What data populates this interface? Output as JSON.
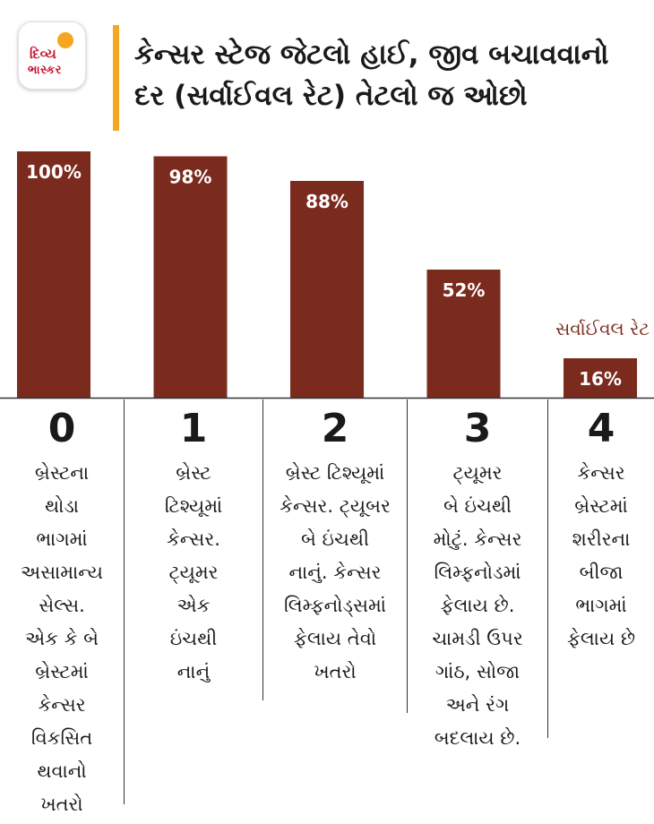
{
  "logo": {
    "line1": "દિવ્ય",
    "line2": "ભાસ્કર"
  },
  "title": "કેન્સર સ્ટેજ જેટલો હાઈ, જીવ બચાવવાનો\nદર (સર્વાઈવલ રેટ) તેટલો જ ઓછો",
  "colors": {
    "bar": "#7b2b1e",
    "accent": "#f5a623",
    "bar_label": "#ffffff"
  },
  "chart_data": {
    "type": "bar",
    "categories": [
      "0",
      "1",
      "2",
      "3",
      "4"
    ],
    "series": [
      {
        "name": "સર્વાઈવલ રેટ",
        "values": [
          100,
          98,
          88,
          52,
          16
        ],
        "labels": [
          "100%",
          "98%",
          "88%",
          "52%",
          "16%"
        ]
      }
    ],
    "ylim": [
      0,
      100
    ],
    "grid": false,
    "legend": "right"
  },
  "stages": [
    {
      "num": "0",
      "desc": "બ્રેસ્ટના\nથોડા\nભાગમાં\nઅસામાન્ય\nસેલ્સ.\nએક કે બે\nબ્રેસ્ટમાં\nકેન્સર\nવિકસિત\nથવાનો\nખતરો"
    },
    {
      "num": "1",
      "desc": "બ્રેસ્ટ\nટિશ્યૂમાં\nકેન્સર.\nટ્યૂમર\nએક\nઇંચથી\nનાનું"
    },
    {
      "num": "2",
      "desc": "બ્રેસ્ટ ટિશ્યૂમાં\nકેન્સર. ટ્યૂબર\nબે ઇંચથી\nનાનું. કેન્સર\nલિમ્ફનોડ્સમાં\nફેલાય તેવો\nખતરો"
    },
    {
      "num": "3",
      "desc": "ટ્યૂમર\nબે ઇંચથી\nમોટું. કેન્સર\nલિમ્ફનોડમાં\nફેલાય છે.\nચામડી ઉપર\nગાંઠ, સોજા\nઅને રંગ\nબદલાય છે."
    },
    {
      "num": "4",
      "desc": "કેન્સર\nબ્રેસ્ટમાં\nશરીરના\nબીજા\nભાગમાં\nફેલાય છે"
    }
  ]
}
